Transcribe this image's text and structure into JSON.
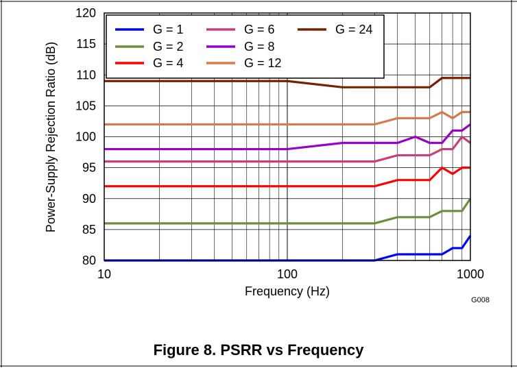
{
  "figure": {
    "caption": "Figure 8. PSRR vs Frequency",
    "code": "G008"
  },
  "chart_data": {
    "type": "line",
    "title": "",
    "xlabel": "Frequency (Hz)",
    "ylabel": "Power-Supply Rejection Ratio (dB)",
    "xscale": "log",
    "xlim": [
      10,
      1000
    ],
    "ylim": [
      80,
      120
    ],
    "xticks": [
      10,
      100,
      1000
    ],
    "xtick_labels": [
      "10",
      "100",
      "1000"
    ],
    "yticks": [
      80,
      85,
      90,
      95,
      100,
      105,
      110,
      115,
      120
    ],
    "ytick_labels": [
      "80",
      "85",
      "90",
      "95",
      "100",
      "105",
      "110",
      "115",
      "120"
    ],
    "grid": true,
    "legend_position": "top-left",
    "series": [
      {
        "name": "G = 1",
        "color": "#0000ff",
        "x": [
          10,
          300,
          400,
          500,
          600,
          700,
          800,
          900,
          1000
        ],
        "y": [
          80,
          80,
          81,
          81,
          81,
          81,
          82,
          82,
          84
        ]
      },
      {
        "name": "G = 2",
        "color": "#6b8e3a",
        "x": [
          10,
          300,
          400,
          500,
          600,
          700,
          800,
          900,
          1000
        ],
        "y": [
          86,
          86,
          87,
          87,
          87,
          88,
          88,
          88,
          90
        ]
      },
      {
        "name": "G = 4",
        "color": "#ff0000",
        "x": [
          10,
          300,
          400,
          500,
          600,
          700,
          800,
          900,
          1000
        ],
        "y": [
          92,
          92,
          93,
          93,
          93,
          95,
          94,
          95,
          95
        ]
      },
      {
        "name": "G = 6",
        "color": "#cc3d7a",
        "x": [
          10,
          300,
          400,
          500,
          600,
          700,
          800,
          900,
          1000
        ],
        "y": [
          96,
          96,
          97,
          97,
          97,
          98,
          98,
          100,
          99
        ]
      },
      {
        "name": "G = 8",
        "color": "#9900cc",
        "x": [
          10,
          100,
          200,
          300,
          400,
          500,
          600,
          700,
          800,
          900,
          1000
        ],
        "y": [
          98,
          98,
          99,
          99,
          99,
          100,
          99,
          99,
          101,
          101,
          102
        ]
      },
      {
        "name": "G = 12",
        "color": "#d9784a",
        "x": [
          10,
          300,
          400,
          500,
          600,
          700,
          800,
          900,
          1000
        ],
        "y": [
          102,
          102,
          103,
          103,
          103,
          104,
          103,
          104,
          104
        ]
      },
      {
        "name": "G = 24",
        "color": "#7a2000",
        "x": [
          10,
          100,
          200,
          300,
          400,
          500,
          600,
          700,
          800,
          900,
          1000
        ],
        "y": [
          109,
          109,
          108,
          108,
          108,
          108,
          108,
          109.5,
          109.5,
          109.5,
          109.5
        ]
      }
    ]
  }
}
